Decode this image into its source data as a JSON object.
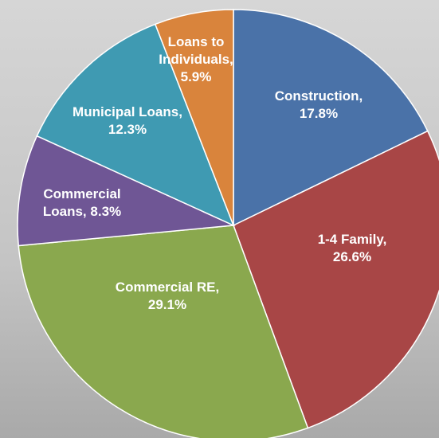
{
  "chart_data": {
    "type": "pie",
    "categories": [
      "Construction,",
      "1-4 Family,",
      "Commercial RE,",
      "Commercial Loans,",
      "Municipal Loans,",
      "Loans to Individuals,"
    ],
    "values": [
      17.8,
      26.6,
      29.1,
      8.3,
      12.3,
      5.9
    ],
    "value_labels": [
      "17.8%",
      "26.6%",
      "29.1%",
      "8.3%",
      "12.3%",
      "5.9%"
    ],
    "colors": [
      "#4a72a8",
      "#a84646",
      "#8aa84e",
      "#6f5695",
      "#3f9ab2",
      "#d9843c"
    ]
  }
}
